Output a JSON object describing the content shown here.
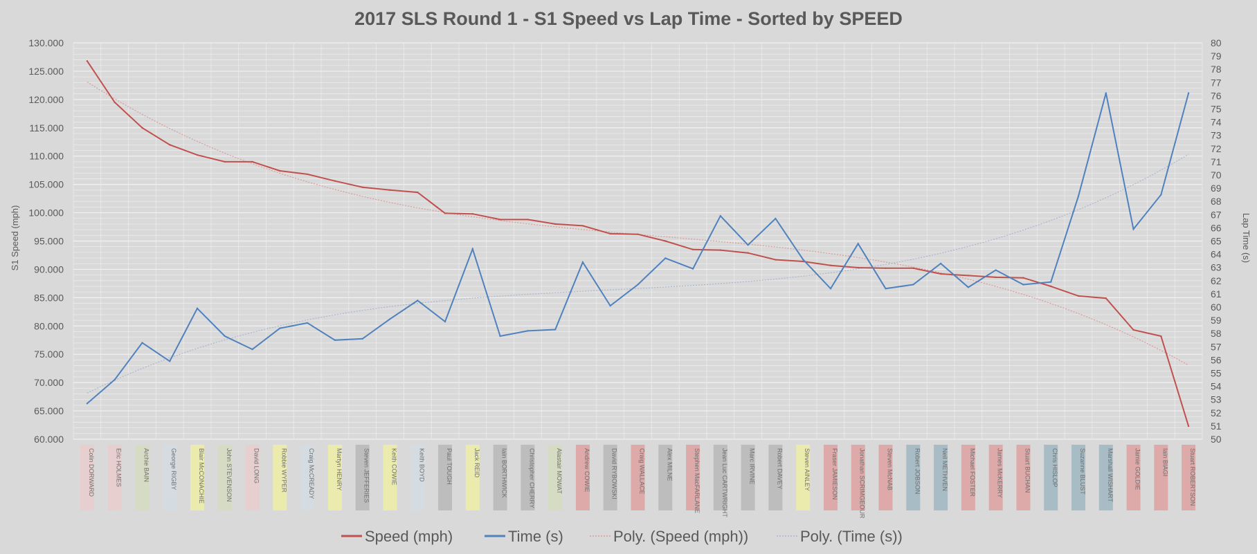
{
  "chart_data": {
    "type": "line",
    "title": "2017 SLS Round 1 - S1 Speed vs Lap Time - Sorted by SPEED",
    "ylabel": "S1 Speed (mph)",
    "y2label": "Lap Time (s)",
    "ylim": [
      60,
      130
    ],
    "y2lim": [
      50,
      80
    ],
    "ytick_labels": [
      "60.000",
      "65.000",
      "70.000",
      "75.000",
      "80.000",
      "85.000",
      "90.000",
      "95.000",
      "100.000",
      "105.000",
      "110.000",
      "115.000",
      "120.000",
      "125.000",
      "130.000"
    ],
    "y2tick_labels": [
      "50",
      "51",
      "52",
      "53",
      "54",
      "55",
      "56",
      "57",
      "58",
      "59",
      "60",
      "61",
      "62",
      "63",
      "64",
      "65",
      "66",
      "67",
      "68",
      "69",
      "70",
      "71",
      "72",
      "73",
      "74",
      "75",
      "76",
      "77",
      "78",
      "79",
      "80"
    ],
    "grid": true,
    "legend_position": "bottom",
    "categories": [
      "Colin DORWARD",
      "Eric HOLMES",
      "Archie BAIN",
      "George RIGBY",
      "Blair McCONACHIE",
      "John STEVENSON",
      "David LONG",
      "Robbie WYPER",
      "Craig McCREADY",
      "Martyn HENRY",
      "Steven JEFFERIES",
      "Keith COWIE",
      "Keith BOYD",
      "Paul TOUGH",
      "Jack REID",
      "Iain BORTHWICK",
      "Christopher CHERRY",
      "Alastair MOWAT",
      "Andrew COWIE",
      "David RYBOWSKI",
      "Craig WALLACE",
      "Alex MILNE",
      "Stephen MacFARLANE",
      "Jean Luc CARTWRIGHT",
      "Marc IRVINE",
      "Robert DAVEY",
      "Steven AINLEY",
      "Fraser JAMIESON",
      "Jonathan SCRIMGEOUR",
      "Steven McNAB",
      "Robert JOBSON",
      "Neil METHVEN",
      "Michael FOSTER",
      "James McKERRY",
      "Stuart BUCHAN",
      "Chris HISLOP",
      "Suzanne BLUST",
      "Marshall WISHART",
      "Jamie GOLDIE",
      "Iain BIAGI",
      "Stuart ROBERTSON"
    ],
    "category_colors": [
      "#e8cfcf",
      "#e8cfcf",
      "#d6dcc4",
      "#d4dce2",
      "#ecebae",
      "#d6dcc4",
      "#e8cfcf",
      "#ecebae",
      "#d4dce2",
      "#ecebae",
      "#bdbdbd",
      "#ecebae",
      "#d4dce2",
      "#bdbdbd",
      "#ecebae",
      "#bdbdbd",
      "#bdbdbd",
      "#d6dcc4",
      "#dda9a9",
      "#bdbdbd",
      "#dda9a9",
      "#bdbdbd",
      "#dda9a9",
      "#bdbdbd",
      "#bdbdbd",
      "#bdbdbd",
      "#ecebae",
      "#dda9a9",
      "#dda9a9",
      "#dda9a9",
      "#a7bcc4",
      "#a7bcc4",
      "#dda9a9",
      "#dda9a9",
      "#dda9a9",
      "#a7bcc4",
      "#a7bcc4",
      "#a7bcc4",
      "#dda9a9",
      "#dda9a9",
      "#dda9a9"
    ],
    "series": [
      {
        "name": "Speed (mph)",
        "axis": "left",
        "color": "#c0504d",
        "values": [
          126.8,
          119.5,
          115.0,
          112.0,
          110.2,
          109.0,
          109.0,
          107.4,
          106.8,
          105.6,
          104.5,
          104.0,
          103.6,
          99.9,
          99.8,
          98.8,
          98.8,
          98.0,
          97.7,
          96.3,
          96.2,
          95.0,
          93.5,
          93.4,
          92.9,
          91.7,
          91.4,
          90.7,
          90.3,
          90.2,
          90.2,
          89.2,
          88.9,
          88.6,
          88.5,
          87.0,
          85.3,
          84.9,
          79.3,
          78.2,
          62.3
        ]
      },
      {
        "name": "Time (s)",
        "axis": "right",
        "color": "#4f81bd",
        "values": [
          52.7,
          54.5,
          57.3,
          55.9,
          59.9,
          57.8,
          56.8,
          58.4,
          58.8,
          57.5,
          57.6,
          59.1,
          60.5,
          58.9,
          64.4,
          57.8,
          58.2,
          58.3,
          63.4,
          60.1,
          61.7,
          63.7,
          62.9,
          66.9,
          64.7,
          66.7,
          63.6,
          61.4,
          64.8,
          61.4,
          61.7,
          63.3,
          61.5,
          62.8,
          61.7,
          61.9,
          68.4,
          76.2,
          65.9,
          68.5,
          76.2
        ]
      }
    ],
    "legend": [
      {
        "label": "Speed (mph)",
        "color": "#c0504d",
        "style": "solid"
      },
      {
        "label": "Time (s)",
        "color": "#4f81bd",
        "style": "solid"
      },
      {
        "label": "Poly. (Speed (mph))",
        "color": "#dc9a98",
        "style": "dotted"
      },
      {
        "label": "Poly. (Time (s))",
        "color": "#a9b6cf",
        "style": "dotted"
      }
    ]
  }
}
